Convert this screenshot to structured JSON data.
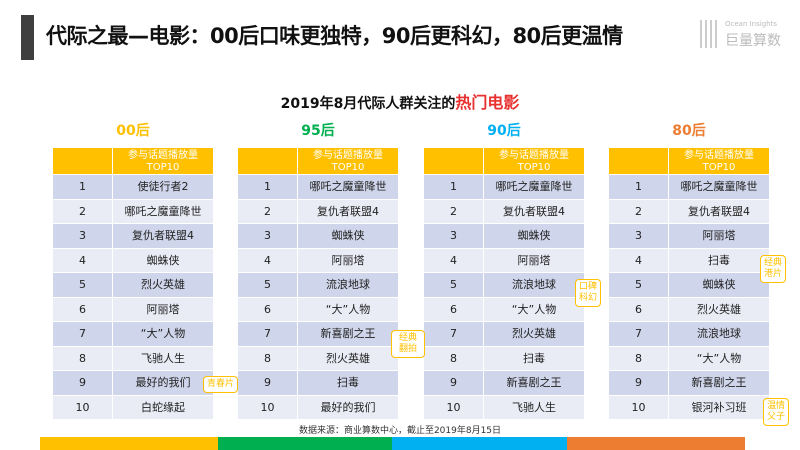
{
  "title": "代际之最—电影：00后口味更独特，90后更科幻，80后更温情",
  "logo": {
    "en": "Ocean Insights",
    "cn": "巨量算数"
  },
  "subtitle": {
    "prefix": "2019年8月代际人群关注的",
    "highlight": "热门电影"
  },
  "header_label_1": "参与话题播放量",
  "header_label_2": "TOP10",
  "columns": [
    {
      "gen": "00后",
      "color": "#ffc000",
      "movies": [
        "使徒行者2",
        "哪吒之魔童降世",
        "复仇者联盟4",
        "蜘蛛侠",
        "烈火英雄",
        "阿丽塔",
        "“大”人物",
        "飞驰人生",
        "最好的我们",
        "白蛇缘起"
      ]
    },
    {
      "gen": "95后",
      "color": "#00b050",
      "movies": [
        "哪吒之魔童降世",
        "复仇者联盟4",
        "蜘蛛侠",
        "阿丽塔",
        "流浪地球",
        "“大”人物",
        "新喜剧之王",
        "烈火英雄",
        "扫毒",
        "最好的我们"
      ]
    },
    {
      "gen": "90后",
      "color": "#00b0f0",
      "movies": [
        "哪吒之魔童降世",
        "复仇者联盟4",
        "蜘蛛侠",
        "阿丽塔",
        "流浪地球",
        "“大”人物",
        "烈火英雄",
        "扫毒",
        "新喜剧之王",
        "飞驰人生"
      ]
    },
    {
      "gen": "80后",
      "color": "#ed7d31",
      "movies": [
        "哪吒之魔童降世",
        "复仇者联盟4",
        "阿丽塔",
        "扫毒",
        "蜘蛛侠",
        "烈火英雄",
        "流浪地球",
        "“大”人物",
        "新喜剧之王",
        "银河补习班"
      ]
    }
  ],
  "tags": {
    "youth": "青春片",
    "remake": "经典翻拍",
    "scifi": "口碑科幻",
    "hk": "经典港片",
    "family": "温情父子"
  },
  "source": "数据来源：商业算数中心，截止至2019年8月15日"
}
